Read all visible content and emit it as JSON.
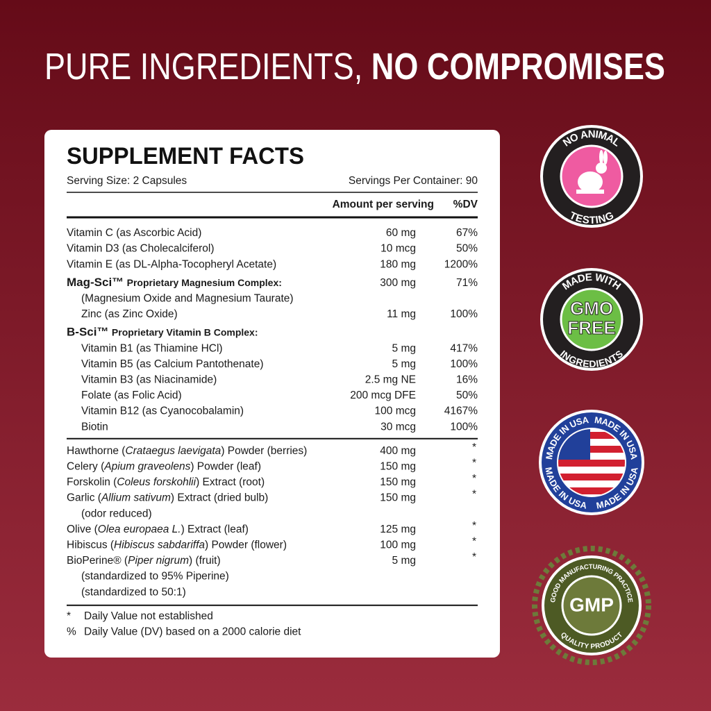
{
  "header": {
    "title_light": "PURE INGREDIENTS,",
    "title_bold": "NO COMPROMISES"
  },
  "facts": {
    "title": "SUPPLEMENT FACTS",
    "serving_size": "Serving Size: 2 Capsules",
    "servings_per_container": "Servings Per Container: 90",
    "amount_header": "Amount per serving",
    "dv_header": "%DV",
    "nutrients": [
      {
        "name": "Vitamin C (as Ascorbic Acid)",
        "amount": "60 mg",
        "dv": "67%"
      },
      {
        "name": "Vitamin D3 (as Cholecalciferol)",
        "amount": "10 mcg",
        "dv": "50%"
      },
      {
        "name": "Vitamin E (as DL-Alpha-Tocopheryl Acetate)",
        "amount": "180 mg",
        "dv": "1200%"
      },
      {
        "brand": "Mag-Sci™",
        "name": "Proprietary Magnesium Complex:",
        "amount": "300 mg",
        "dv": "71%",
        "items": [
          {
            "name": "(Magnesium Oxide and Magnesium Taurate)"
          },
          {
            "name": "Zinc (as Zinc Oxide)",
            "amount": "11 mg",
            "dv": "100%"
          }
        ]
      },
      {
        "brand": "B-Sci™",
        "name": "Proprietary Vitamin B Complex:",
        "items": [
          {
            "name": "Vitamin B1 (as Thiamine HCl)",
            "amount": "5 mg",
            "dv": "417%"
          },
          {
            "name": "Vitamin B5 (as Calcium Pantothenate)",
            "amount": "5 mg",
            "dv": "100%"
          },
          {
            "name": "Vitamin B3 (as Niacinamide)",
            "amount": "2.5 mg NE",
            "dv": "16%"
          },
          {
            "name": "Folate (as Folic Acid)",
            "amount": "200 mcg DFE",
            "dv": "50%"
          },
          {
            "name": "Vitamin B12 (as Cyanocobalamin)",
            "amount": "100 mcg",
            "dv": "4167%"
          },
          {
            "name": "Biotin",
            "amount": "30 mcg",
            "dv": "100%"
          }
        ]
      }
    ],
    "botanicals": [
      {
        "name": [
          "Hawthorne (",
          "Crataegus laevigata",
          ") Powder (berries)"
        ],
        "amount": "400 mg",
        "dv": "*"
      },
      {
        "name": [
          "Celery (",
          "Apium graveolens",
          ") Powder (leaf)"
        ],
        "amount": "150 mg",
        "dv": "*"
      },
      {
        "name": [
          "Forskolin (",
          "Coleus forskohlii",
          ") Extract (root)"
        ],
        "amount": "150 mg",
        "dv": "*"
      },
      {
        "name": [
          "Garlic (",
          "Allium sativum",
          ") Extract (dried bulb)"
        ],
        "amount": "150 mg",
        "dv": "*",
        "notes": [
          "(odor reduced)"
        ]
      },
      {
        "name": [
          "Olive (",
          "Olea europaea L.",
          ") Extract (leaf)"
        ],
        "amount": "125 mg",
        "dv": "*"
      },
      {
        "name": [
          "Hibiscus (",
          "Hibiscus sabdariffa",
          ") Powder (flower)"
        ],
        "amount": "100 mg",
        "dv": "*"
      },
      {
        "name": [
          "BioPerine® (",
          "Piper nigrum",
          ") (fruit)"
        ],
        "amount": "5 mg",
        "dv": "*",
        "notes": [
          "(standardized to 95% Piperine)",
          "(standardized to 50:1)"
        ]
      }
    ],
    "footnotes": [
      {
        "symbol": "*",
        "text": "Daily Value not established"
      },
      {
        "symbol": "%",
        "text": "Daily Value (DV) based on a 2000 calorie diet"
      }
    ]
  },
  "badges": {
    "animal": {
      "top": "NO ANIMAL",
      "bottom": "TESTING"
    },
    "gmo": {
      "top": "MADE WITH",
      "line1": "GMO",
      "line2": "FREE",
      "bottom": "INGREDIENTS"
    },
    "usa": {
      "text": "MADE IN USA"
    },
    "gmp": {
      "top": "GOOD MANUFACTURING PRACTICE",
      "center": "GMP",
      "bottom": "QUALITY PRODUCT"
    }
  }
}
